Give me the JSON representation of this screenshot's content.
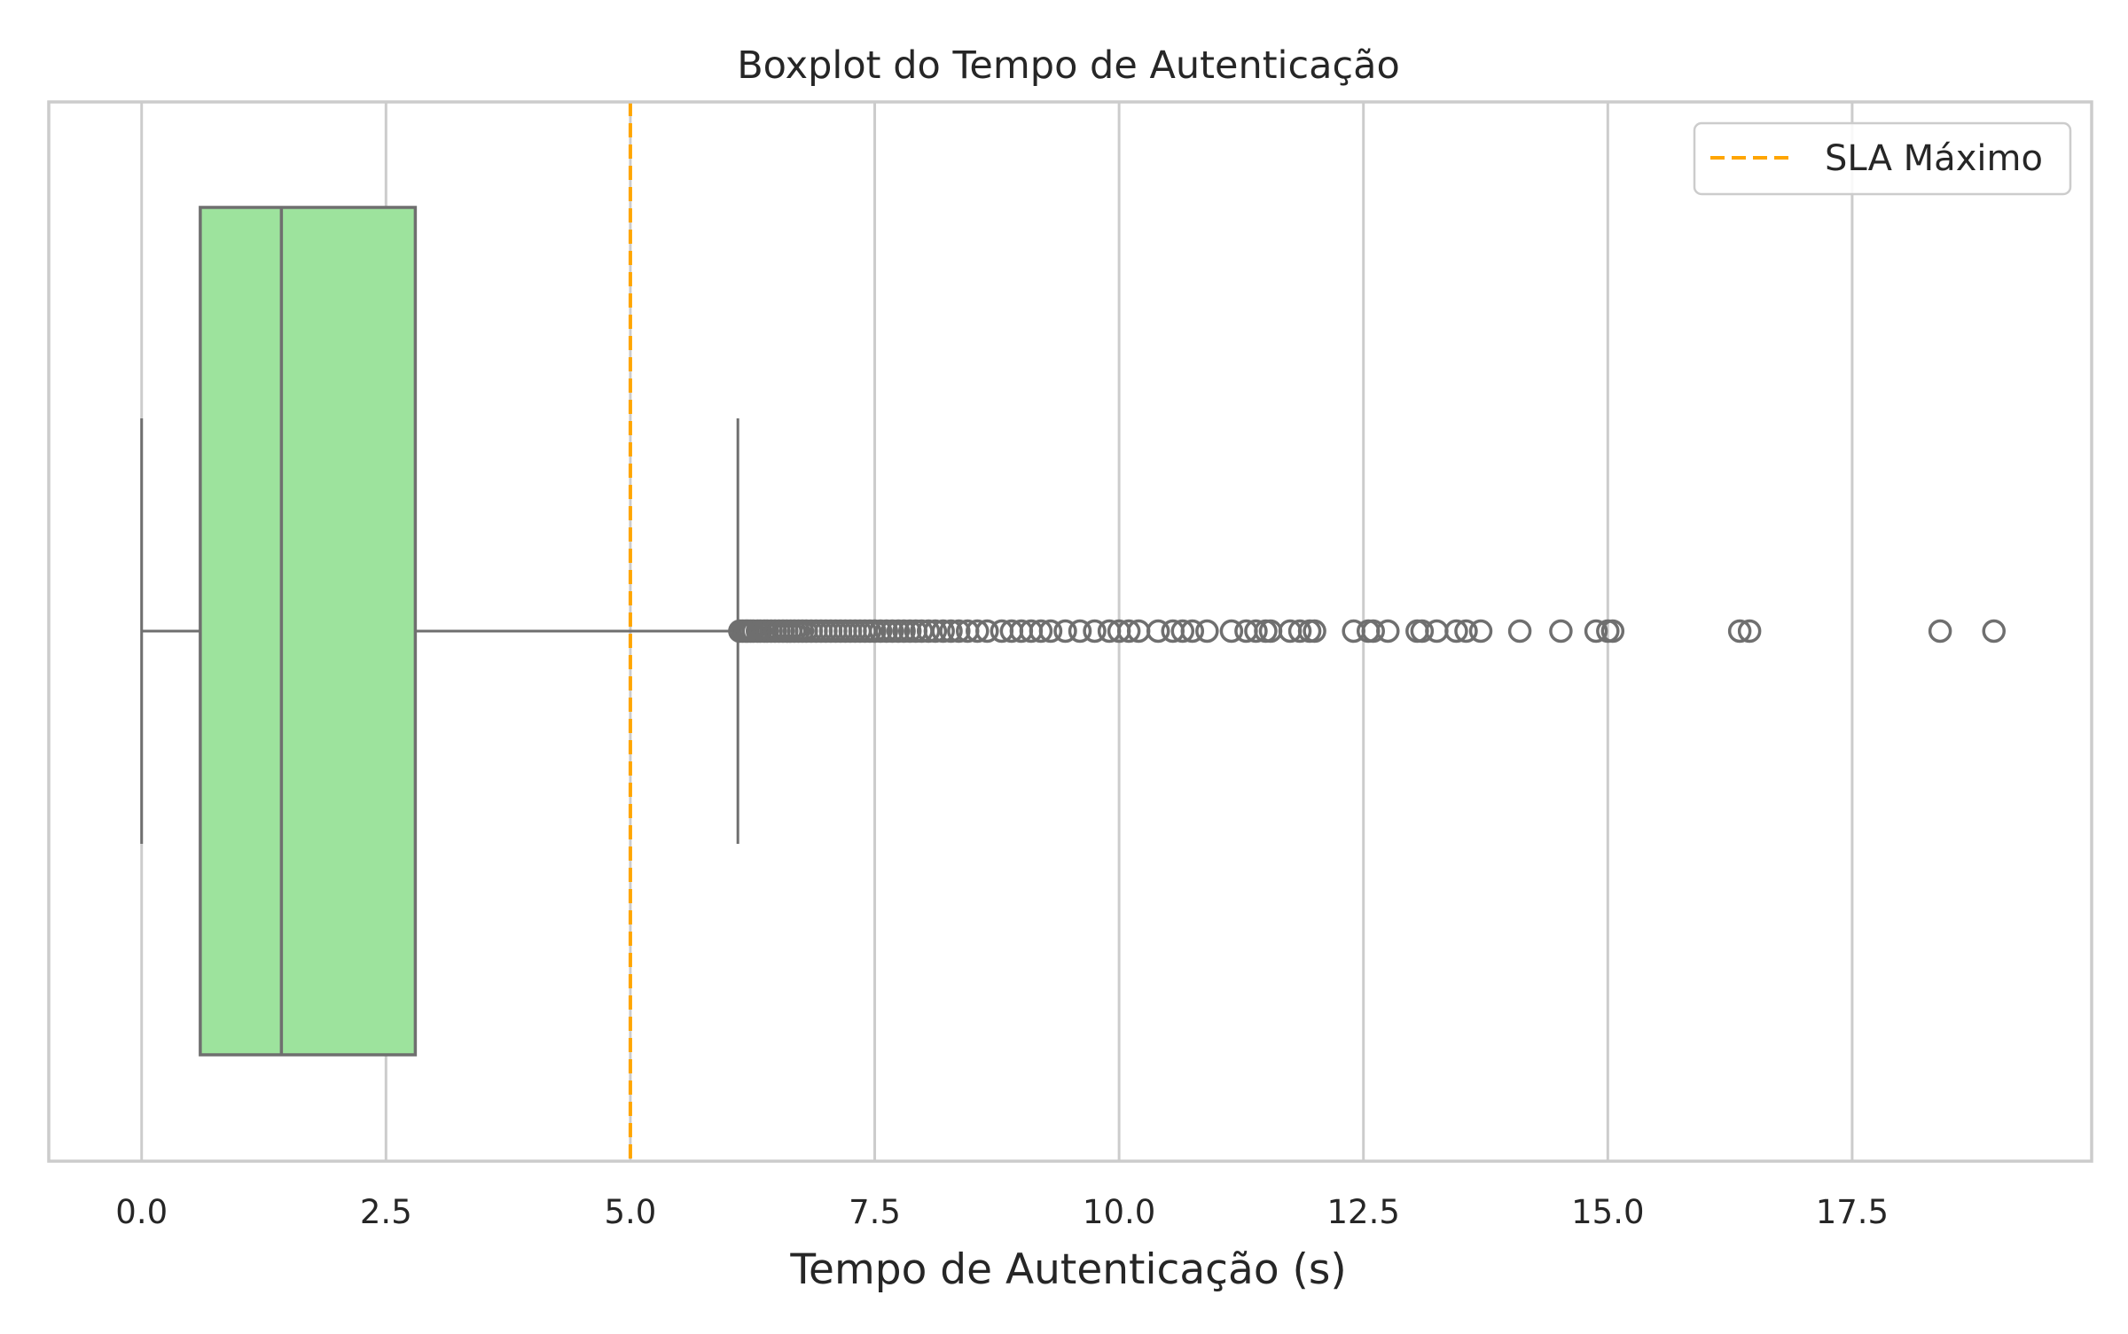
{
  "chart_data": {
    "type": "boxplot",
    "orientation": "horizontal",
    "title": "Boxplot do Tempo de Autenticação",
    "xlabel": "Tempo de Autenticação (s)",
    "ylabel": "",
    "xlim": [
      -0.95,
      19.95
    ],
    "xticks": [
      0.0,
      2.5,
      5.0,
      7.5,
      10.0,
      12.5,
      15.0,
      17.5
    ],
    "xtick_labels": [
      "0.0",
      "2.5",
      "5.0",
      "7.5",
      "10.0",
      "12.5",
      "15.0",
      "17.5"
    ],
    "grid": "vertical",
    "legend_position": "top-right",
    "box": {
      "whisker_low": 0.0,
      "q1": 0.6,
      "median": 1.43,
      "q3": 2.8,
      "whisker_high": 6.1,
      "color": "#9de39d",
      "edge_color": "#6f6f6f"
    },
    "outliers": [
      6.12,
      6.15,
      6.18,
      6.2,
      6.23,
      6.26,
      6.3,
      6.33,
      6.37,
      6.4,
      6.44,
      6.48,
      6.52,
      6.56,
      6.6,
      6.64,
      6.68,
      6.72,
      6.76,
      6.8,
      6.85,
      6.9,
      6.95,
      7.0,
      7.05,
      7.1,
      7.15,
      7.2,
      7.25,
      7.3,
      7.35,
      7.4,
      7.45,
      7.5,
      7.56,
      7.62,
      7.68,
      7.74,
      7.8,
      7.86,
      7.92,
      7.98,
      8.05,
      8.12,
      8.2,
      8.28,
      8.36,
      8.45,
      8.55,
      8.65,
      8.8,
      8.9,
      9.0,
      9.1,
      9.2,
      9.3,
      9.45,
      9.6,
      9.75,
      9.9,
      10.0,
      10.1,
      10.2,
      10.4,
      10.55,
      10.65,
      10.75,
      10.9,
      11.15,
      11.3,
      11.4,
      11.5,
      11.55,
      11.75,
      11.85,
      11.95,
      12.0,
      12.4,
      12.55,
      12.6,
      12.75,
      13.05,
      13.1,
      13.25,
      13.45,
      13.55,
      13.7,
      14.1,
      14.52,
      14.88,
      15.0,
      15.05,
      16.35,
      16.45,
      18.4,
      18.95
    ],
    "reference_lines": [
      {
        "name": "SLA Máximo",
        "x": 5.0,
        "color": "#ffa500",
        "style": "dashed"
      }
    ],
    "legend_entries": [
      "SLA Máximo"
    ]
  }
}
